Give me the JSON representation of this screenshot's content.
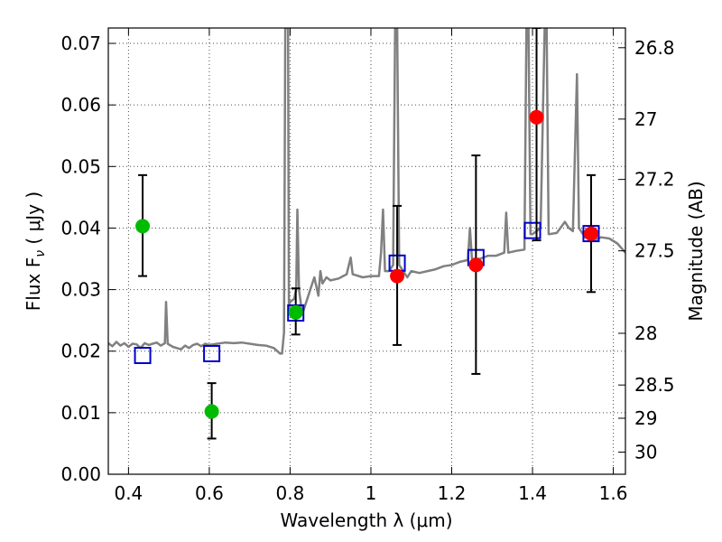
{
  "chart_data": {
    "type": "scatter",
    "xlabel": "Wavelength  λ (μm)",
    "ylabel": "Flux  F",
    "ylabel_sub": "ν",
    "ylabel_unit": "  ( μJy )",
    "y2label": "Magnitude (AB)",
    "xlim": [
      0.35,
      1.63
    ],
    "ylim": [
      0.0,
      0.0725
    ],
    "grid": true,
    "x_ticks": [
      0.4,
      0.6,
      0.8,
      1.0,
      1.2,
      1.4,
      1.6
    ],
    "x_tick_labels": [
      "0.4",
      "0.6",
      "0.8",
      "1",
      "1.2",
      "1.4",
      "1.6"
    ],
    "y_ticks": [
      0.0,
      0.01,
      0.02,
      0.03,
      0.04,
      0.05,
      0.06,
      0.07
    ],
    "y_tick_labels": [
      "0.00",
      "0.01",
      "0.02",
      "0.03",
      "0.04",
      "0.05",
      "0.06",
      "0.07"
    ],
    "y2_ticks": [
      {
        "label": "26.8",
        "flux": 0.0693
      },
      {
        "label": "27",
        "flux": 0.0577
      },
      {
        "label": "27.2",
        "flux": 0.0479
      },
      {
        "label": "27.5",
        "flux": 0.0363
      },
      {
        "label": "28",
        "flux": 0.0229
      },
      {
        "label": "28.5",
        "flux": 0.0145
      },
      {
        "label": "29",
        "flux": 0.0091
      },
      {
        "label": "30",
        "flux": 0.0036
      }
    ],
    "series": [
      {
        "marker": "circle",
        "color": "#00bb00",
        "points": [
          {
            "x": 0.435,
            "y": 0.0403,
            "err_lo": 0.0322,
            "err_hi": 0.0486
          },
          {
            "x": 0.606,
            "y": 0.0102,
            "err_lo": 0.0058,
            "err_hi": 0.0148
          },
          {
            "x": 0.814,
            "y": 0.0263,
            "err_lo": 0.0227,
            "err_hi": 0.0302
          }
        ]
      },
      {
        "marker": "circle",
        "color": "#ff0000",
        "points": [
          {
            "x": 1.065,
            "y": 0.0322,
            "err_lo": 0.021,
            "err_hi": 0.0436
          },
          {
            "x": 1.26,
            "y": 0.034,
            "err_lo": 0.0163,
            "err_hi": 0.0518
          },
          {
            "x": 1.41,
            "y": 0.058,
            "err_lo": 0.038,
            "err_hi": 0.0725
          },
          {
            "x": 1.545,
            "y": 0.0391,
            "err_lo": 0.0296,
            "err_hi": 0.0486
          }
        ]
      },
      {
        "marker": "square-open",
        "color": "#0000cc",
        "points": [
          {
            "x": 0.435,
            "y": 0.0193
          },
          {
            "x": 0.606,
            "y": 0.0196
          },
          {
            "x": 0.814,
            "y": 0.0262
          },
          {
            "x": 1.065,
            "y": 0.0343
          },
          {
            "x": 1.26,
            "y": 0.0352
          },
          {
            "x": 1.4,
            "y": 0.0396
          },
          {
            "x": 1.545,
            "y": 0.0391
          }
        ]
      },
      {
        "marker": "line",
        "color": "#808080",
        "points": [
          [
            0.35,
            0.0213
          ],
          [
            0.36,
            0.0208
          ],
          [
            0.37,
            0.0215
          ],
          [
            0.38,
            0.0209
          ],
          [
            0.39,
            0.0213
          ],
          [
            0.4,
            0.0207
          ],
          [
            0.41,
            0.0212
          ],
          [
            0.42,
            0.0211
          ],
          [
            0.43,
            0.0205
          ],
          [
            0.44,
            0.0213
          ],
          [
            0.45,
            0.021
          ],
          [
            0.46,
            0.0212
          ],
          [
            0.47,
            0.0214
          ],
          [
            0.48,
            0.0209
          ],
          [
            0.49,
            0.0213
          ],
          [
            0.493,
            0.028
          ],
          [
            0.497,
            0.0212
          ],
          [
            0.51,
            0.0207
          ],
          [
            0.52,
            0.0205
          ],
          [
            0.53,
            0.0203
          ],
          [
            0.54,
            0.0209
          ],
          [
            0.55,
            0.0205
          ],
          [
            0.56,
            0.021
          ],
          [
            0.57,
            0.0212
          ],
          [
            0.58,
            0.0208
          ],
          [
            0.59,
            0.0212
          ],
          [
            0.6,
            0.021
          ],
          [
            0.62,
            0.0212
          ],
          [
            0.64,
            0.0214
          ],
          [
            0.66,
            0.0213
          ],
          [
            0.68,
            0.0214
          ],
          [
            0.7,
            0.0212
          ],
          [
            0.72,
            0.021
          ],
          [
            0.74,
            0.0209
          ],
          [
            0.76,
            0.0205
          ],
          [
            0.775,
            0.0196
          ],
          [
            0.78,
            0.0196
          ],
          [
            0.785,
            0.023
          ],
          [
            0.788,
            0.0725
          ],
          [
            0.795,
            0.0725
          ],
          [
            0.797,
            0.027
          ],
          [
            0.8,
            0.028
          ],
          [
            0.81,
            0.0285
          ],
          [
            0.815,
            0.03
          ],
          [
            0.818,
            0.043
          ],
          [
            0.822,
            0.03
          ],
          [
            0.83,
            0.026
          ],
          [
            0.84,
            0.028
          ],
          [
            0.85,
            0.03
          ],
          [
            0.86,
            0.032
          ],
          [
            0.87,
            0.029
          ],
          [
            0.875,
            0.033
          ],
          [
            0.88,
            0.031
          ],
          [
            0.89,
            0.032
          ],
          [
            0.9,
            0.0315
          ],
          [
            0.92,
            0.0318
          ],
          [
            0.94,
            0.0325
          ],
          [
            0.95,
            0.0352
          ],
          [
            0.955,
            0.0325
          ],
          [
            0.98,
            0.032
          ],
          [
            1.0,
            0.0322
          ],
          [
            1.02,
            0.0322
          ],
          [
            1.025,
            0.036
          ],
          [
            1.03,
            0.043
          ],
          [
            1.035,
            0.033
          ],
          [
            1.045,
            0.033
          ],
          [
            1.055,
            0.034
          ],
          [
            1.06,
            0.0725
          ],
          [
            1.065,
            0.0725
          ],
          [
            1.07,
            0.034
          ],
          [
            1.09,
            0.032
          ],
          [
            1.1,
            0.033
          ],
          [
            1.12,
            0.0327
          ],
          [
            1.14,
            0.033
          ],
          [
            1.16,
            0.0333
          ],
          [
            1.18,
            0.0338
          ],
          [
            1.2,
            0.034
          ],
          [
            1.22,
            0.0345
          ],
          [
            1.24,
            0.0348
          ],
          [
            1.245,
            0.04
          ],
          [
            1.25,
            0.035
          ],
          [
            1.27,
            0.035
          ],
          [
            1.29,
            0.0355
          ],
          [
            1.31,
            0.0355
          ],
          [
            1.33,
            0.036
          ],
          [
            1.335,
            0.0425
          ],
          [
            1.34,
            0.036
          ],
          [
            1.36,
            0.0363
          ],
          [
            1.38,
            0.0365
          ],
          [
            1.385,
            0.0725
          ],
          [
            1.39,
            0.0725
          ],
          [
            1.395,
            0.039
          ],
          [
            1.4,
            0.039
          ],
          [
            1.41,
            0.0395
          ],
          [
            1.42,
            0.04
          ],
          [
            1.43,
            0.0725
          ],
          [
            1.435,
            0.0725
          ],
          [
            1.44,
            0.039
          ],
          [
            1.46,
            0.0392
          ],
          [
            1.48,
            0.041
          ],
          [
            1.49,
            0.04
          ],
          [
            1.5,
            0.0395
          ],
          [
            1.51,
            0.065
          ],
          [
            1.515,
            0.04
          ],
          [
            1.53,
            0.0385
          ],
          [
            1.55,
            0.038
          ],
          [
            1.57,
            0.0385
          ],
          [
            1.59,
            0.0383
          ],
          [
            1.61,
            0.0375
          ],
          [
            1.63,
            0.036
          ]
        ]
      }
    ]
  }
}
